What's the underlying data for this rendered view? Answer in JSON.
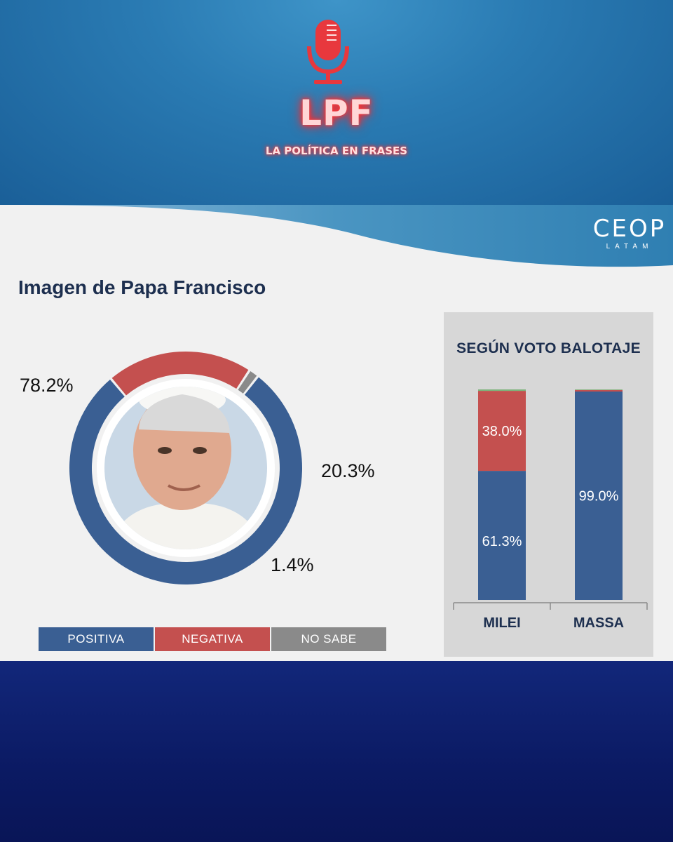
{
  "header": {
    "brand": "LPF",
    "tagline": "LA POLÍTICA EN FRASES"
  },
  "logo": {
    "main": "CEOP",
    "sub": "LATAM"
  },
  "colors": {
    "positiva": "#3a5f93",
    "negativa": "#c4504f",
    "no_sabe": "#8a8a8a",
    "title": "#1d2f4f",
    "mic": "#e8383d"
  },
  "chart_data": [
    {
      "type": "pie",
      "title": "Imagen de Papa Francisco",
      "donut": true,
      "center_image": "portrait-photo",
      "labels": [
        "POSITIVA",
        "NEGATIVA",
        "NO SABE"
      ],
      "values": [
        78.2,
        20.3,
        1.4
      ],
      "value_labels": [
        "78.2%",
        "20.3%",
        "1.4%"
      ],
      "legend_position": "bottom"
    },
    {
      "type": "bar",
      "stacked": true,
      "title": "SEGÚN VOTO BALOTAJE",
      "categories": [
        "MILEI",
        "MASSA"
      ],
      "series": [
        {
          "name": "POSITIVA",
          "values": [
            61.3,
            99.0
          ],
          "labels": [
            "61.3%",
            "99.0%"
          ]
        },
        {
          "name": "NEGATIVA",
          "values": [
            38.0,
            0.7
          ],
          "labels": [
            "38.0%",
            ""
          ]
        },
        {
          "name": "NO SABE",
          "values": [
            0.7,
            0.3
          ],
          "labels": [
            "",
            ""
          ]
        }
      ],
      "ylim": [
        0,
        100
      ]
    }
  ]
}
